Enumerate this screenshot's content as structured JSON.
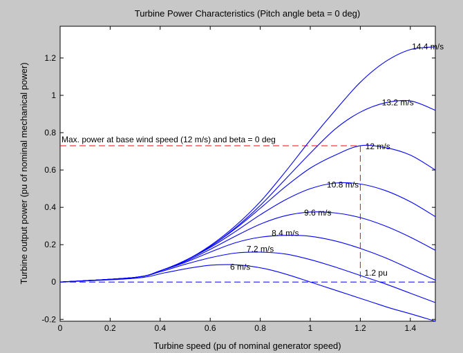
{
  "chart_data": {
    "type": "line",
    "title": "Turbine Power Characteristics (Pitch angle beta = 0 deg)",
    "xlabel": "Turbine speed (pu of nominal generator speed)",
    "ylabel": "Turbine output power (pu of nominal mechanical power)",
    "xlim": [
      0,
      1.5
    ],
    "ylim": [
      -0.21,
      1.37
    ],
    "xticks": [
      "0",
      "0.2",
      "0.4",
      "0.6",
      "0.8",
      "1",
      "1.2",
      "1.4"
    ],
    "yticks": [
      "-0.2",
      "0",
      "0.2",
      "0.4",
      "0.6",
      "0.8",
      "1",
      "1.2"
    ],
    "grid": false,
    "legend": "none",
    "line_color": "#0000ff",
    "reference_color": "#ff0000",
    "series": [
      {
        "name": "6 m/s",
        "label": "6 m/s",
        "x": [
          0,
          0.3,
          0.42,
          0.52,
          0.6,
          0.68,
          0.76,
          0.84,
          0.92,
          1.0,
          1.08,
          1.16,
          1.24,
          1.32,
          1.4,
          1.5
        ],
        "y": [
          0,
          0.02,
          0.05,
          0.075,
          0.09,
          0.093,
          0.085,
          0.065,
          0.035,
          0.0,
          -0.035,
          -0.07,
          -0.105,
          -0.14,
          -0.17,
          -0.21
        ]
      },
      {
        "name": "7.2 m/s",
        "label": "7.2 m/s",
        "x": [
          0,
          0.3,
          0.4,
          0.5,
          0.6,
          0.7,
          0.8,
          0.9,
          1.0,
          1.1,
          1.2,
          1.3,
          1.4,
          1.5
        ],
        "y": [
          0,
          0.025,
          0.055,
          0.095,
          0.13,
          0.155,
          0.16,
          0.15,
          0.12,
          0.08,
          0.035,
          -0.01,
          -0.06,
          -0.11
        ]
      },
      {
        "name": "8.4 m/s",
        "label": "8.4 m/s",
        "x": [
          0,
          0.3,
          0.4,
          0.5,
          0.6,
          0.7,
          0.8,
          0.9,
          1.0,
          1.1,
          1.2,
          1.3,
          1.4,
          1.5
        ],
        "y": [
          0,
          0.025,
          0.06,
          0.105,
          0.16,
          0.21,
          0.24,
          0.25,
          0.245,
          0.22,
          0.18,
          0.13,
          0.07,
          0.01
        ]
      },
      {
        "name": "9.6 m/s",
        "label": "9.6 m/s",
        "x": [
          0,
          0.3,
          0.4,
          0.5,
          0.6,
          0.7,
          0.8,
          0.9,
          1.0,
          1.1,
          1.2,
          1.3,
          1.4,
          1.5
        ],
        "y": [
          0,
          0.025,
          0.06,
          0.11,
          0.175,
          0.245,
          0.31,
          0.355,
          0.375,
          0.37,
          0.345,
          0.3,
          0.24,
          0.17
        ]
      },
      {
        "name": "10.8 m/s",
        "label": "10.8 m/s",
        "x": [
          0,
          0.3,
          0.4,
          0.5,
          0.6,
          0.7,
          0.8,
          0.9,
          1.0,
          1.1,
          1.2,
          1.3,
          1.4,
          1.5
        ],
        "y": [
          0,
          0.025,
          0.06,
          0.115,
          0.185,
          0.27,
          0.36,
          0.44,
          0.5,
          0.53,
          0.525,
          0.49,
          0.43,
          0.35
        ]
      },
      {
        "name": "12 m/s",
        "label": "12 m/s",
        "x": [
          0,
          0.3,
          0.4,
          0.5,
          0.6,
          0.7,
          0.8,
          0.9,
          1.0,
          1.1,
          1.2,
          1.3,
          1.4,
          1.5
        ],
        "y": [
          0,
          0.025,
          0.06,
          0.115,
          0.19,
          0.285,
          0.395,
          0.51,
          0.61,
          0.68,
          0.73,
          0.72,
          0.68,
          0.6
        ]
      },
      {
        "name": "13.2 m/s",
        "label": "13.2 m/s",
        "x": [
          0,
          0.3,
          0.4,
          0.5,
          0.6,
          0.7,
          0.8,
          0.9,
          1.0,
          1.1,
          1.2,
          1.3,
          1.4,
          1.5
        ],
        "y": [
          0,
          0.025,
          0.06,
          0.115,
          0.19,
          0.29,
          0.41,
          0.55,
          0.69,
          0.82,
          0.91,
          0.96,
          0.97,
          0.92
        ]
      },
      {
        "name": "14.4 m/s",
        "label": "14.4 m/s",
        "x": [
          0,
          0.3,
          0.4,
          0.5,
          0.6,
          0.7,
          0.8,
          0.9,
          1.0,
          1.1,
          1.2,
          1.3,
          1.4,
          1.5
        ],
        "y": [
          0,
          0.025,
          0.06,
          0.115,
          0.195,
          0.3,
          0.43,
          0.59,
          0.76,
          0.92,
          1.07,
          1.18,
          1.245,
          1.26
        ]
      }
    ],
    "annotations": {
      "max_power_text": "Max. power at base wind speed (12 m/s) and beta = 0 deg",
      "max_power_value": 0.73,
      "base_speed_text": "1.2 pu",
      "base_speed_value": 1.2
    }
  }
}
